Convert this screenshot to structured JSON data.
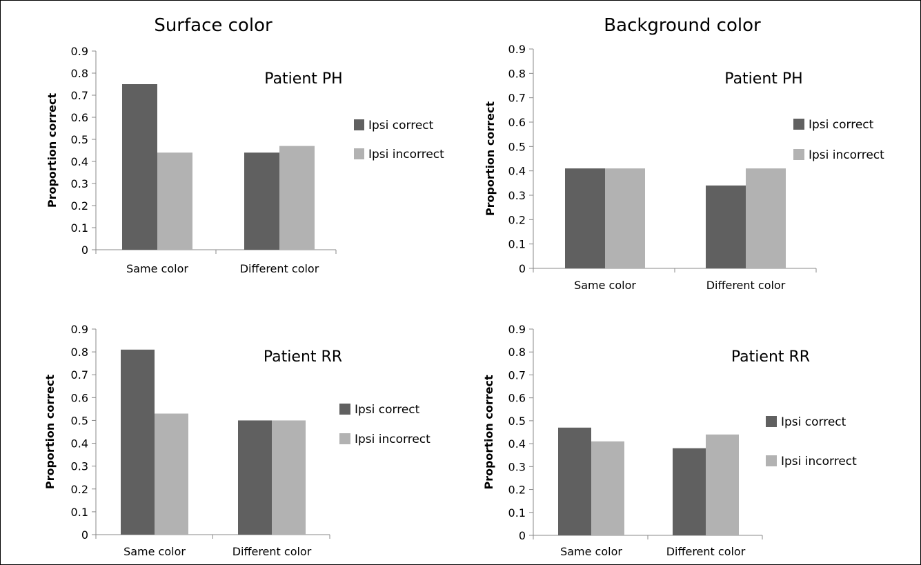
{
  "column_titles": [
    "Surface color",
    "Background color"
  ],
  "colors": {
    "ipsi_correct": "#606060",
    "ipsi_incorrect": "#b2b2b2"
  },
  "chart_data": [
    {
      "type": "bar",
      "title": "Patient PH",
      "ylabel": "Proportion correct",
      "ylim": [
        0,
        0.9
      ],
      "yticks": [
        "0",
        "0.1",
        "0.2",
        "0.3",
        "0.4",
        "0.5",
        "0.6",
        "0.7",
        "0.8",
        "0.9"
      ],
      "categories": [
        "Same color",
        "Different color"
      ],
      "series": [
        {
          "name": "Ipsi correct",
          "values": [
            0.75,
            0.44
          ]
        },
        {
          "name": "Ipsi incorrect",
          "values": [
            0.44,
            0.47
          ]
        }
      ],
      "grid": false,
      "legend": "right"
    },
    {
      "type": "bar",
      "title": "Patient PH",
      "ylabel": "Proportion correct",
      "ylim": [
        0,
        0.9
      ],
      "yticks": [
        "0",
        "0.1",
        "0.2",
        "0.3",
        "0.4",
        "0.5",
        "0.6",
        "0.7",
        "0.8",
        "0.9"
      ],
      "categories": [
        "Same color",
        "Different color"
      ],
      "series": [
        {
          "name": "Ipsi correct",
          "values": [
            0.41,
            0.34
          ]
        },
        {
          "name": "Ipsi incorrect",
          "values": [
            0.41,
            0.41
          ]
        }
      ],
      "grid": false,
      "legend": "right"
    },
    {
      "type": "bar",
      "title": "Patient RR",
      "ylabel": "Proportion correct",
      "ylim": [
        0,
        0.9
      ],
      "yticks": [
        "0",
        "0.1",
        "0.2",
        "0.3",
        "0.4",
        "0.5",
        "0.6",
        "0.7",
        "0.8",
        "0.9"
      ],
      "categories": [
        "Same color",
        "Different color"
      ],
      "series": [
        {
          "name": "Ipsi correct",
          "values": [
            0.81,
            0.5
          ]
        },
        {
          "name": "Ipsi incorrect",
          "values": [
            0.53,
            0.5
          ]
        }
      ],
      "grid": false,
      "legend": "right"
    },
    {
      "type": "bar",
      "title": "Patient RR",
      "ylabel": "Proportion correct",
      "ylim": [
        0,
        0.9
      ],
      "yticks": [
        "0",
        "0.1",
        "0.2",
        "0.3",
        "0.4",
        "0.5",
        "0.6",
        "0.7",
        "0.8",
        "0.9"
      ],
      "categories": [
        "Same color",
        "Different color"
      ],
      "series": [
        {
          "name": "Ipsi correct",
          "values": [
            0.47,
            0.38
          ]
        },
        {
          "name": "Ipsi incorrect",
          "values": [
            0.41,
            0.44
          ]
        }
      ],
      "grid": false,
      "legend": "right"
    }
  ]
}
